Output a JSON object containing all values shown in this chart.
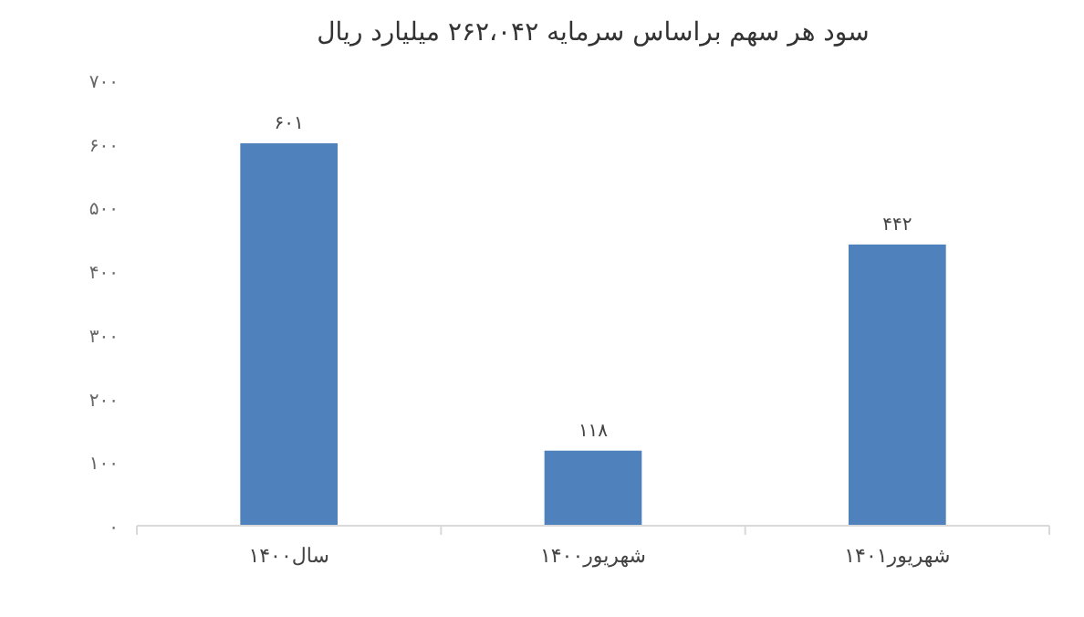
{
  "chart_data": {
    "type": "bar",
    "title": "سود هر سهم براساس سرمایه ۲۶۲،۰۴۲ میلیارد ریال",
    "categories": [
      "سال۱۴۰۰",
      "شهریور۱۴۰۰",
      "شهریور۱۴۰۱"
    ],
    "values": [
      601,
      118,
      442
    ],
    "value_labels": [
      "۶۰۱",
      "۱۱۸",
      "۴۴۲"
    ],
    "color": "#4f81bd",
    "ylim": [
      0,
      700
    ],
    "yticks": [
      {
        "value": 0,
        "label": "۰"
      },
      {
        "value": 100,
        "label": "۱۰۰"
      },
      {
        "value": 200,
        "label": "۲۰۰"
      },
      {
        "value": 300,
        "label": "۳۰۰"
      },
      {
        "value": 400,
        "label": "۴۰۰"
      },
      {
        "value": 500,
        "label": "۵۰۰"
      },
      {
        "value": 600,
        "label": "۶۰۰"
      },
      {
        "value": 700,
        "label": "۷۰۰"
      }
    ]
  }
}
